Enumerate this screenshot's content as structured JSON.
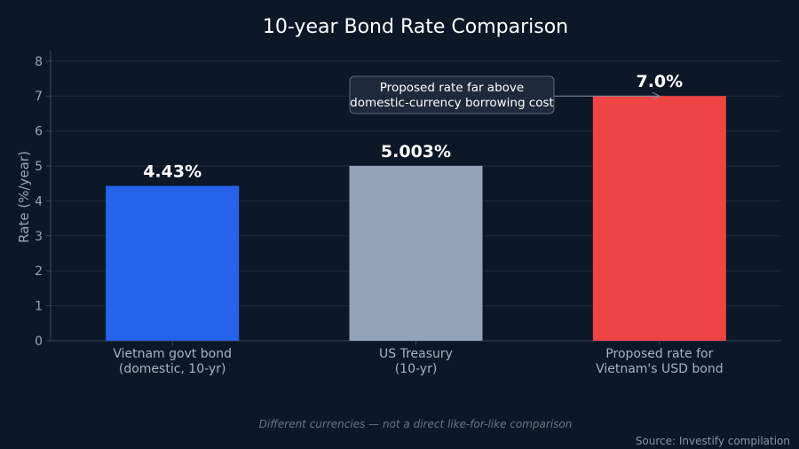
{
  "chart_data": {
    "type": "bar",
    "title": "10-year Bond Rate Comparison",
    "xlabel": "",
    "ylabel": "Rate (%/year)",
    "ylim": [
      0,
      8.3
    ],
    "yticks": [
      0,
      1,
      2,
      3,
      4,
      5,
      6,
      7,
      8
    ],
    "grid": true,
    "categories": [
      [
        "Vietnam govt bond",
        "(domestic, 10-yr)"
      ],
      [
        "US Treasury",
        "(10-yr)"
      ],
      [
        "Proposed rate for",
        "Vietnam's USD bond"
      ]
    ],
    "values": [
      4.43,
      5.003,
      7.0
    ],
    "value_labels": [
      "4.43%",
      "5.003%",
      "7.0%"
    ],
    "colors": [
      "#2563eb",
      "#94a3b8",
      "#ef4444"
    ],
    "annotation": {
      "lines": [
        "Proposed rate far above",
        "domestic-currency borrowing cost"
      ],
      "target_index": 2
    },
    "footnote": "Different currencies — not a direct like-for-like comparison",
    "source": "Source: Investify compilation"
  },
  "colors": {
    "background": "#0c1727",
    "grid": "#1f2b3d",
    "axis": "#3a4658"
  }
}
